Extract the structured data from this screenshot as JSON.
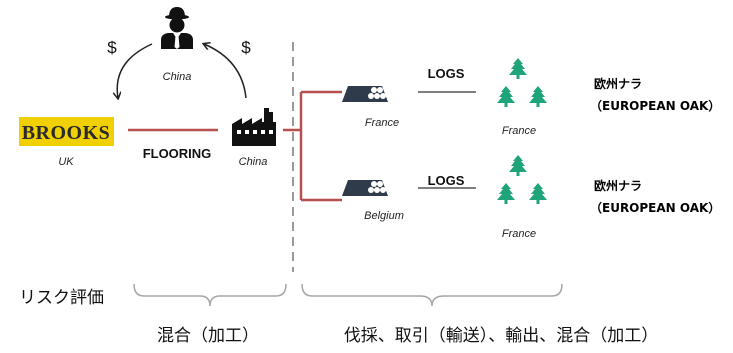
{
  "buyer": {
    "brand": "Brooks",
    "brand_display": "BROOKS",
    "country": "UK",
    "brand_color": "#f0d000"
  },
  "importer": {
    "country": "China",
    "payment_symbol_left": "$",
    "payment_symbol_right": "$"
  },
  "factory": {
    "country": "China"
  },
  "link_product": "FLOORING",
  "supply_chains": [
    {
      "log_source_country": "France",
      "link_label": "LOGS",
      "forest_country": "France",
      "species_line1": "欧州ナラ",
      "species_line2": "（EUROPEAN OAK）"
    },
    {
      "log_source_country": "Belgium",
      "link_label": "LOGS",
      "forest_country": "France",
      "species_line1": "欧州ナラ",
      "species_line2": "（EUROPEAN OAK）"
    }
  ],
  "risk_label": "リスク評価",
  "risk_segments": {
    "left": "混合（加工）",
    "right": "伐採、取引（輸送）、輸出、混合（加工）"
  },
  "colors": {
    "connector_red": "#b5504f",
    "connector_dark": "#555555",
    "icon_dark": "#2f3a4a",
    "tree_green": "#1fa37a",
    "divider_gray": "#9a9a9a",
    "brace_gray": "#a6a6a6"
  },
  "icons": {
    "person": "businessman-icon",
    "factory": "factory-icon",
    "logs": "log-pile-icon",
    "forest": "forest-icon"
  }
}
